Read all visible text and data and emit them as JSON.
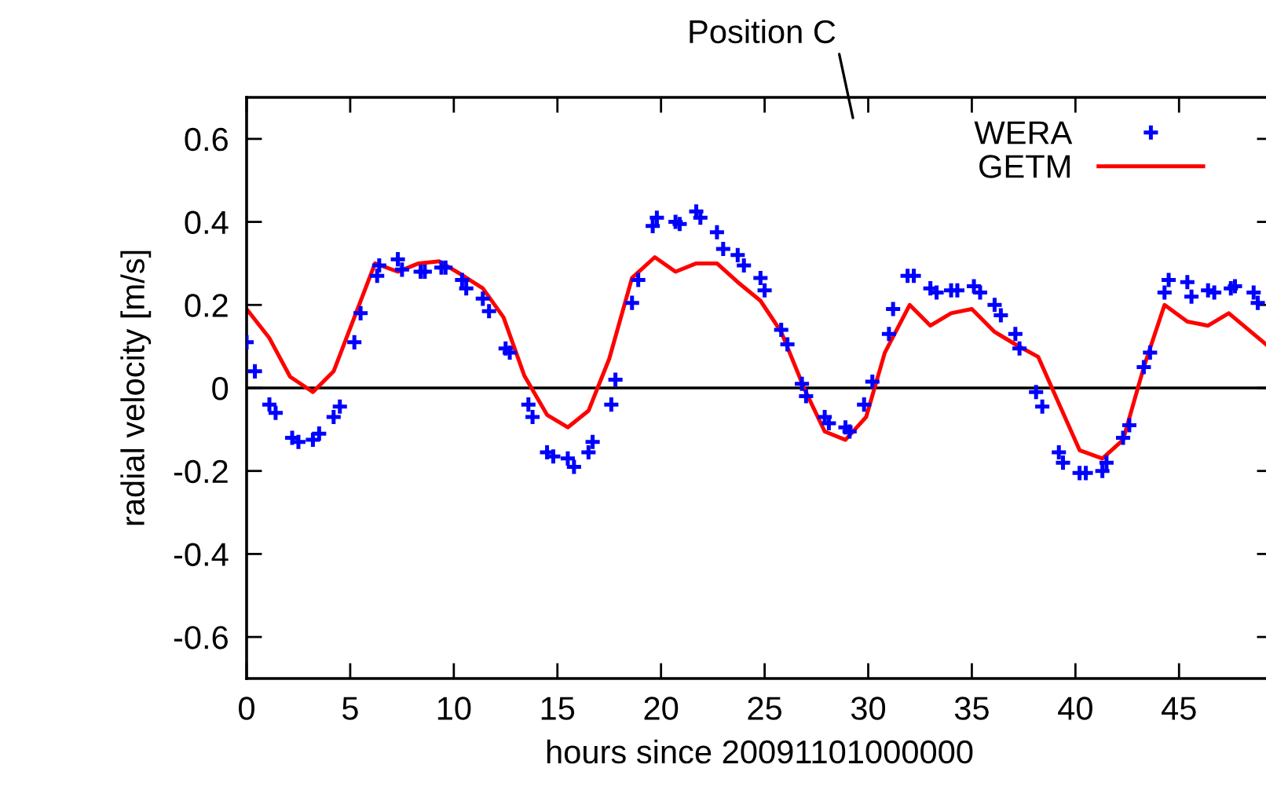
{
  "chart_data": {
    "type": "scatter",
    "title": "Position C",
    "xlabel": "hours since 20091101000000",
    "ylabel": "radial velocity [m/s]",
    "xlim": [
      0,
      49.5
    ],
    "ylim": [
      -0.7,
      0.7
    ],
    "xticks": [
      0,
      5,
      10,
      15,
      20,
      25,
      30,
      35,
      40,
      45
    ],
    "yticks": [
      -0.6,
      -0.4,
      -0.2,
      0,
      0.2,
      0.4,
      0.6
    ],
    "legend": "top right",
    "grid": false,
    "ref_lines": [
      {
        "axis": "y",
        "value": 0,
        "color": "#000000"
      }
    ],
    "series": [
      {
        "name": "WERA",
        "marker": "cross",
        "color": "#0000ff",
        "x": [
          0,
          0.4,
          1.1,
          1.4,
          2.2,
          2.5,
          3.2,
          3.5,
          4.2,
          4.5,
          5.2,
          5.5,
          6.3,
          6.4,
          7.3,
          7.5,
          8.4,
          8.6,
          9.4,
          9.6,
          10.4,
          10.6,
          11.4,
          11.7,
          12.5,
          12.7,
          13.6,
          13.8,
          14.5,
          14.8,
          15.5,
          15.8,
          16.5,
          16.7,
          17.6,
          17.8,
          18.6,
          18.9,
          19.6,
          19.8,
          20.7,
          20.9,
          21.7,
          21.9,
          22.7,
          23.0,
          23.7,
          24.0,
          24.8,
          25.0,
          25.8,
          26.1,
          26.8,
          27.0,
          27.9,
          28.1,
          28.9,
          29.1,
          29.8,
          30.2,
          31.0,
          31.2,
          31.9,
          32.2,
          33.0,
          33.3,
          34.0,
          34.3,
          35.1,
          35.4,
          36.1,
          36.4,
          37.1,
          37.3,
          38.1,
          38.4,
          39.2,
          39.4,
          40.2,
          40.5,
          41.3,
          41.5,
          42.3,
          42.6,
          43.3,
          43.6,
          44.3,
          44.5,
          45.4,
          45.6,
          46.4,
          46.7,
          47.5,
          47.7,
          48.6,
          48.8
        ],
        "values": [
          0.11,
          0.04,
          -0.04,
          -0.06,
          -0.12,
          -0.13,
          -0.125,
          -0.11,
          -0.07,
          -0.045,
          0.11,
          0.18,
          0.27,
          0.295,
          0.31,
          0.285,
          0.28,
          0.28,
          0.29,
          0.29,
          0.26,
          0.24,
          0.215,
          0.185,
          0.095,
          0.085,
          -0.04,
          -0.07,
          -0.155,
          -0.165,
          -0.17,
          -0.19,
          -0.155,
          -0.13,
          -0.04,
          0.02,
          0.205,
          0.26,
          0.39,
          0.41,
          0.4,
          0.395,
          0.425,
          0.41,
          0.375,
          0.335,
          0.32,
          0.295,
          0.265,
          0.235,
          0.14,
          0.105,
          0.01,
          -0.02,
          -0.07,
          -0.085,
          -0.095,
          -0.105,
          -0.04,
          0.015,
          0.13,
          0.19,
          0.27,
          0.27,
          0.24,
          0.23,
          0.235,
          0.235,
          0.245,
          0.23,
          0.2,
          0.175,
          0.13,
          0.095,
          -0.01,
          -0.045,
          -0.155,
          -0.18,
          -0.205,
          -0.205,
          -0.2,
          -0.18,
          -0.12,
          -0.09,
          0.05,
          0.085,
          0.23,
          0.26,
          0.255,
          0.22,
          0.235,
          0.23,
          0.24,
          0.245,
          0.23,
          0.205
        ]
      },
      {
        "name": "GETM",
        "type": "line",
        "marker": "none",
        "line_style": "solid",
        "color": "#ff0000",
        "x": [
          0,
          1.1,
          2.1,
          3.2,
          4.2,
          5.2,
          6.2,
          7.3,
          8.3,
          9.3,
          10.3,
          11.4,
          12.4,
          13.4,
          14.5,
          15.5,
          16.5,
          17.5,
          18.6,
          19.7,
          20.7,
          21.7,
          22.7,
          23.7,
          24.8,
          25.8,
          26.9,
          27.9,
          28.9,
          29.9,
          30.8,
          32.0,
          33.0,
          34.0,
          35.0,
          36.1,
          37.1,
          38.2,
          40.2,
          41.3,
          42.3,
          43.3,
          44.3,
          45.4,
          46.4,
          47.4,
          49.2
        ],
        "values": [
          0.19,
          0.12,
          0.027,
          -0.01,
          0.04,
          0.17,
          0.3,
          0.28,
          0.3,
          0.305,
          0.275,
          0.24,
          0.17,
          0.03,
          -0.065,
          -0.095,
          -0.055,
          0.07,
          0.265,
          0.315,
          0.28,
          0.3,
          0.3,
          0.255,
          0.21,
          0.135,
          0.0,
          -0.105,
          -0.125,
          -0.07,
          0.085,
          0.2,
          0.15,
          0.18,
          0.19,
          0.135,
          0.105,
          0.075,
          -0.15,
          -0.17,
          -0.125,
          0.05,
          0.2,
          0.16,
          0.15,
          0.18,
          0.105
        ]
      }
    ]
  }
}
